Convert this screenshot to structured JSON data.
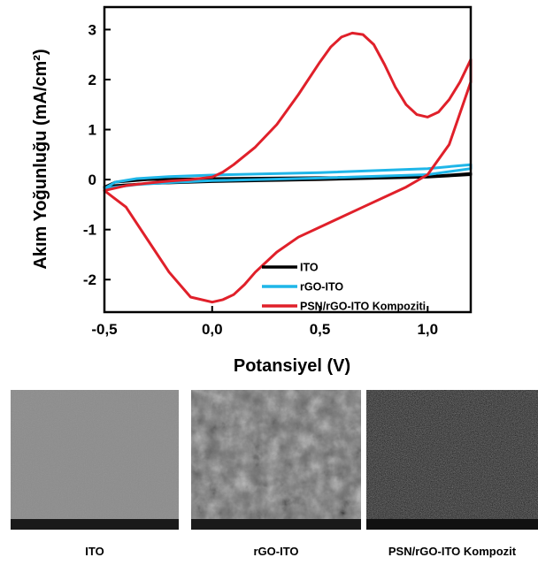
{
  "chart_data": {
    "type": "line",
    "title": "",
    "xlabel": "Potansiyel (V)",
    "ylabel": "Akım Yoğunluğu (mA/cm²)",
    "xlim": [
      -0.5,
      1.2
    ],
    "ylim": [
      -2.65,
      3.45
    ],
    "x_ticks": [
      -0.5,
      0.0,
      0.5,
      1.0
    ],
    "x_tick_labels": [
      "-0,5",
      "0,0",
      "0,5",
      "1,0"
    ],
    "y_ticks": [
      -2,
      -1,
      0,
      1,
      2,
      3
    ],
    "y_tick_labels": [
      "-2",
      "-1",
      "0",
      "1",
      "2",
      "3"
    ],
    "grid": false,
    "legend_position": "bottom-right",
    "series": [
      {
        "name": "ITO",
        "color": "#000000",
        "x": [
          -0.5,
          -0.45,
          -0.3,
          0.0,
          0.5,
          1.0,
          1.2,
          1.2,
          1.0,
          0.5,
          0.0,
          -0.3,
          -0.45,
          -0.5
        ],
        "y": [
          -0.15,
          -0.05,
          0.0,
          0.02,
          0.04,
          0.06,
          0.12,
          0.1,
          0.05,
          0.0,
          -0.04,
          -0.08,
          -0.12,
          -0.15
        ]
      },
      {
        "name": "rGO-ITO",
        "color": "#1FB6E8",
        "x": [
          -0.5,
          -0.45,
          -0.35,
          -0.2,
          0.0,
          0.5,
          1.0,
          1.2,
          1.2,
          1.0,
          0.5,
          0.0,
          -0.2,
          -0.35,
          -0.45,
          -0.5
        ],
        "y": [
          -0.18,
          -0.05,
          0.02,
          0.06,
          0.09,
          0.14,
          0.22,
          0.3,
          0.22,
          0.1,
          0.03,
          -0.02,
          -0.06,
          -0.1,
          -0.15,
          -0.18
        ]
      },
      {
        "name": "PSN/rGO-ITO Kompoziti",
        "color": "#E0202A",
        "x": [
          -0.5,
          -0.4,
          -0.3,
          -0.2,
          -0.1,
          0.0,
          0.05,
          0.1,
          0.2,
          0.3,
          0.4,
          0.5,
          0.55,
          0.6,
          0.65,
          0.7,
          0.75,
          0.8,
          0.85,
          0.9,
          0.95,
          1.0,
          1.05,
          1.1,
          1.15,
          1.2,
          1.2,
          1.1,
          1.0,
          0.9,
          0.8,
          0.7,
          0.6,
          0.5,
          0.4,
          0.3,
          0.2,
          0.15,
          0.1,
          0.05,
          0.0,
          -0.1,
          -0.2,
          -0.3,
          -0.4,
          -0.5
        ],
        "y": [
          -0.22,
          -0.12,
          -0.07,
          -0.03,
          0.0,
          0.05,
          0.15,
          0.3,
          0.65,
          1.1,
          1.7,
          2.35,
          2.65,
          2.85,
          2.93,
          2.9,
          2.7,
          2.3,
          1.85,
          1.5,
          1.3,
          1.25,
          1.35,
          1.6,
          1.95,
          2.4,
          1.95,
          0.7,
          0.1,
          -0.15,
          -0.35,
          -0.55,
          -0.75,
          -0.95,
          -1.15,
          -1.45,
          -1.85,
          -2.1,
          -2.3,
          -2.4,
          -2.45,
          -2.35,
          -1.85,
          -1.2,
          -0.55,
          -0.22
        ]
      }
    ]
  },
  "images": {
    "panels": [
      {
        "caption": "ITO"
      },
      {
        "caption": "rGO-ITO"
      },
      {
        "caption": "PSN/rGO-ITO Kompozit"
      }
    ]
  }
}
